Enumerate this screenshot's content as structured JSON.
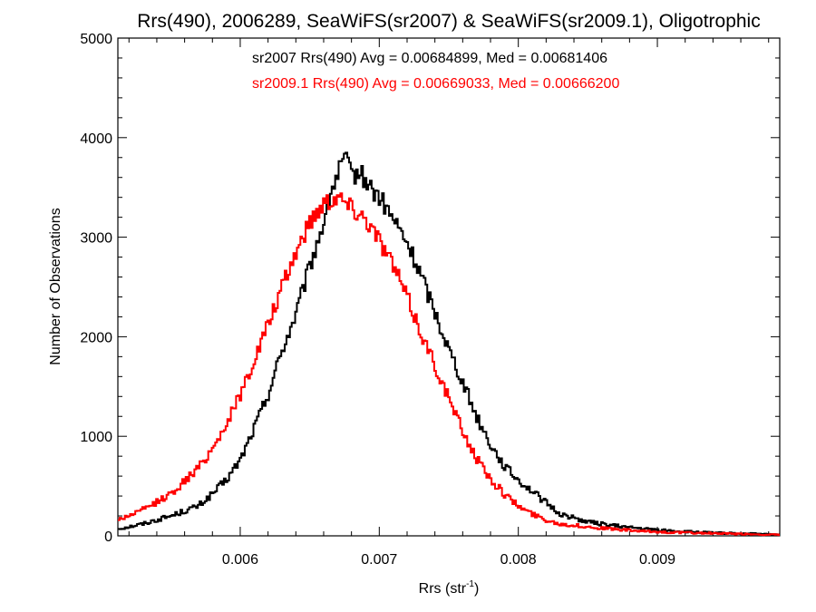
{
  "chart_data": {
    "type": "histogram",
    "title": "Rrs(490), 2006289, SeaWiFS(sr2007) & SeaWiFS(sr2009.1), Oligotrophic",
    "xlabel": "Rrs (str",
    "xlabel_superscript": "-1",
    "xlabel_close": ")",
    "ylabel": "Number of Observations",
    "xlim": [
      0.00512,
      0.00988
    ],
    "ylim": [
      0,
      5000
    ],
    "x_ticks": [
      0.006,
      0.007,
      0.008,
      0.009
    ],
    "x_tick_labels": [
      "0.006",
      "0.007",
      "0.008",
      "0.009"
    ],
    "y_ticks": [
      0,
      1000,
      2000,
      3000,
      4000,
      5000
    ],
    "y_tick_labels": [
      "0",
      "1000",
      "2000",
      "3000",
      "4000",
      "5000"
    ],
    "grid": false,
    "annotations": [
      {
        "text": "sr2007 Rrs(490) Avg = 0.00684899, Med = 0.00681406",
        "color": "#000000"
      },
      {
        "text": "sr2009.1 Rrs(490) Avg = 0.00669033, Med = 0.00666200",
        "color": "#ff0000"
      }
    ],
    "series": [
      {
        "color": "#000000",
        "points": [
          [
            0.00512,
            70
          ],
          [
            0.0053,
            120
          ],
          [
            0.0055,
            200
          ],
          [
            0.0057,
            300
          ],
          [
            0.0058,
            420
          ],
          [
            0.0059,
            560
          ],
          [
            0.006,
            760
          ],
          [
            0.0061,
            1080
          ],
          [
            0.0062,
            1420
          ],
          [
            0.0063,
            1860
          ],
          [
            0.0064,
            2220
          ],
          [
            0.0065,
            2700
          ],
          [
            0.0066,
            3150
          ],
          [
            0.00665,
            3450
          ],
          [
            0.0067,
            3620
          ],
          [
            0.00675,
            3800
          ],
          [
            0.0068,
            3620
          ],
          [
            0.00685,
            3650
          ],
          [
            0.0069,
            3580
          ],
          [
            0.00695,
            3470
          ],
          [
            0.007,
            3400
          ],
          [
            0.0071,
            3180
          ],
          [
            0.0072,
            2940
          ],
          [
            0.0073,
            2620
          ],
          [
            0.0074,
            2250
          ],
          [
            0.0075,
            1880
          ],
          [
            0.0076,
            1550
          ],
          [
            0.0077,
            1200
          ],
          [
            0.0078,
            920
          ],
          [
            0.0079,
            700
          ],
          [
            0.008,
            560
          ],
          [
            0.0081,
            450
          ],
          [
            0.0082,
            330
          ],
          [
            0.0083,
            220
          ],
          [
            0.0085,
            140
          ],
          [
            0.0087,
            100
          ],
          [
            0.0089,
            70
          ],
          [
            0.0091,
            50
          ],
          [
            0.0094,
            30
          ],
          [
            0.0097,
            20
          ],
          [
            0.00988,
            10
          ]
        ]
      },
      {
        "color": "#ff0000",
        "points": [
          [
            0.00512,
            160
          ],
          [
            0.0053,
            260
          ],
          [
            0.0055,
            420
          ],
          [
            0.0057,
            680
          ],
          [
            0.0058,
            880
          ],
          [
            0.0059,
            1120
          ],
          [
            0.006,
            1420
          ],
          [
            0.0061,
            1760
          ],
          [
            0.0062,
            2120
          ],
          [
            0.0063,
            2480
          ],
          [
            0.0064,
            2850
          ],
          [
            0.0065,
            3150
          ],
          [
            0.0066,
            3350
          ],
          [
            0.0067,
            3420
          ],
          [
            0.0068,
            3300
          ],
          [
            0.0069,
            3200
          ],
          [
            0.007,
            2980
          ],
          [
            0.0071,
            2720
          ],
          [
            0.0072,
            2400
          ],
          [
            0.0073,
            2040
          ],
          [
            0.0074,
            1720
          ],
          [
            0.0075,
            1380
          ],
          [
            0.0076,
            1050
          ],
          [
            0.0077,
            780
          ],
          [
            0.0078,
            570
          ],
          [
            0.0079,
            420
          ],
          [
            0.008,
            300
          ],
          [
            0.0081,
            220
          ],
          [
            0.0082,
            160
          ],
          [
            0.0083,
            120
          ],
          [
            0.0085,
            90
          ],
          [
            0.0087,
            65
          ],
          [
            0.0089,
            45
          ],
          [
            0.0091,
            35
          ],
          [
            0.0094,
            25
          ],
          [
            0.0097,
            15
          ],
          [
            0.00988,
            10
          ]
        ]
      }
    ]
  }
}
